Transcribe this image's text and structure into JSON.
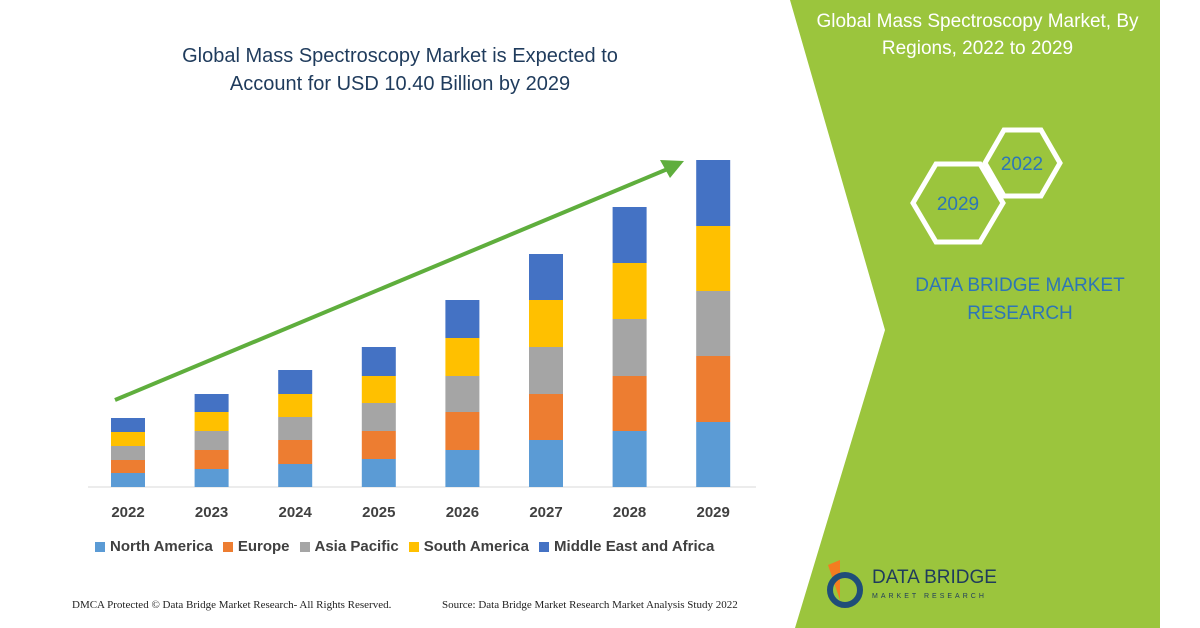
{
  "chart_data": {
    "type": "bar",
    "stacked": true,
    "title": "Global Mass Spectroscopy Market is Expected to Account for USD 10.40 Billion by 2029",
    "categories": [
      "2022",
      "2023",
      "2024",
      "2025",
      "2026",
      "2027",
      "2028",
      "2029"
    ],
    "series": [
      {
        "name": "North America",
        "color": "#5b9bd5",
        "values": [
          14,
          18,
          23,
          28,
          37,
          47,
          56,
          65
        ]
      },
      {
        "name": "Europe",
        "color": "#ed7d31",
        "values": [
          13,
          19,
          24,
          28,
          38,
          46,
          55,
          66
        ]
      },
      {
        "name": "Asia Pacific",
        "color": "#a5a5a5",
        "values": [
          14,
          19,
          23,
          28,
          36,
          47,
          57,
          65
        ]
      },
      {
        "name": "South America",
        "color": "#ffc000",
        "values": [
          14,
          19,
          23,
          27,
          38,
          47,
          56,
          65
        ]
      },
      {
        "name": "Middle East and Africa",
        "color": "#4472c4",
        "values": [
          14,
          18,
          24,
          29,
          38,
          46,
          56,
          66
        ]
      }
    ]
  },
  "panel": {
    "title": "Global Mass Spectroscopy Market, By Regions, 2022 to 2029",
    "hex_labels": [
      "2022",
      "2029"
    ],
    "brand": "DATA BRIDGE MARKET RESEARCH"
  },
  "logo": {
    "name": "DATA BRIDGE",
    "tagline": "MARKET RESEARCH"
  },
  "footer": {
    "dmca": "DMCA Protected © Data Bridge Market Research- All Rights Reserved.",
    "source": "Source: Data Bridge Market Research Market Analysis Study 2022"
  }
}
